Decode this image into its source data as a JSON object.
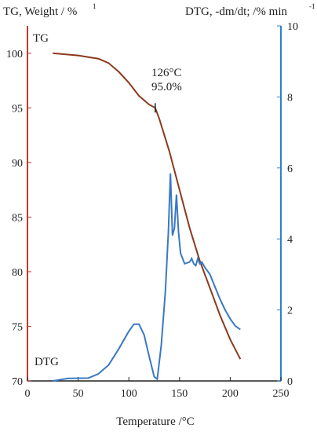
{
  "chart_data": {
    "type": "line",
    "xlabel": "Temperature /°C",
    "ylabel_left": "TG, Weight / %",
    "ylabel_right": "DTG, -dm/dt; /% min",
    "xlim": [
      0,
      250
    ],
    "ylim_left": [
      70,
      102.5
    ],
    "ylim_right": [
      0,
      10
    ],
    "x_ticks": [
      "0",
      "50",
      "100",
      "150",
      "200",
      "250"
    ],
    "y_left_ticks": [
      "70",
      "75",
      "80",
      "85",
      "90",
      "95",
      "100"
    ],
    "y_right_ticks": [
      "0",
      "2",
      "4",
      "6",
      "8",
      "10"
    ],
    "grid": false,
    "series": [
      {
        "name": "TG",
        "axis": "left",
        "color": "#8b3a1e",
        "x": [
          25,
          50,
          70,
          80,
          90,
          100,
          110,
          120,
          126,
          130,
          140,
          150,
          160,
          170,
          180,
          190,
          200,
          210
        ],
        "y": [
          100.0,
          99.8,
          99.5,
          99.1,
          98.3,
          97.3,
          96.1,
          95.3,
          95.0,
          94.0,
          91.0,
          87.5,
          84.0,
          81.0,
          78.5,
          76.0,
          73.8,
          72.0
        ]
      },
      {
        "name": "DTG",
        "axis": "right",
        "color": "#3a78c3",
        "x": [
          25,
          40,
          60,
          70,
          80,
          90,
          100,
          105,
          110,
          115,
          120,
          125,
          128,
          132,
          136,
          139,
          141,
          143,
          145,
          147,
          149,
          151,
          155,
          160,
          162,
          164,
          166,
          168,
          170,
          172,
          175,
          180,
          185,
          190,
          195,
          200,
          205,
          210
        ],
        "y": [
          0.0,
          0.07,
          0.08,
          0.2,
          0.45,
          0.9,
          1.4,
          1.6,
          1.6,
          1.3,
          0.7,
          0.12,
          0.05,
          1.0,
          2.5,
          4.2,
          5.85,
          4.1,
          4.3,
          5.25,
          4.2,
          3.6,
          3.3,
          3.35,
          3.45,
          3.3,
          3.25,
          3.45,
          3.3,
          3.35,
          3.2,
          3.0,
          2.65,
          2.3,
          2.0,
          1.75,
          1.55,
          1.45
        ]
      }
    ],
    "annotations": {
      "tg_label": "TG",
      "dtg_label": "DTG",
      "marker_temp": "126°C",
      "marker_weight": "95.0%",
      "marker_x": 126,
      "marker_y": 95.0
    }
  }
}
